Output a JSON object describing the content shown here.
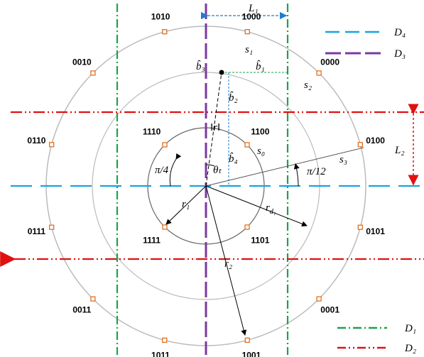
{
  "outer_points": [
    "0100",
    "0000",
    "1000",
    "1010",
    "0010",
    "0110",
    "0111",
    "0011",
    "1011",
    "1001",
    "0001",
    "0101"
  ],
  "inner_points": [
    "1100",
    "1110",
    "1111",
    "1101"
  ],
  "legend": [
    "D₄",
    "D₃",
    "D₁",
    "D₂"
  ],
  "L1": "L₁",
  "L2": "L₂",
  "regions": [
    "s₁",
    "s₂",
    "s₀",
    "s₃"
  ],
  "angles": [
    "π/4",
    "π/12"
  ],
  "r1": "r₁",
  "r2": "r₂",
  "rd1": {
    "base": "r",
    "sub": "d₁"
  },
  "norm_r": "‖r‖",
  "theta": "θₜ",
  "b_hats": [
    "b̂₁",
    "b̂₂",
    "b̂₃",
    "b̂₄"
  ]
}
